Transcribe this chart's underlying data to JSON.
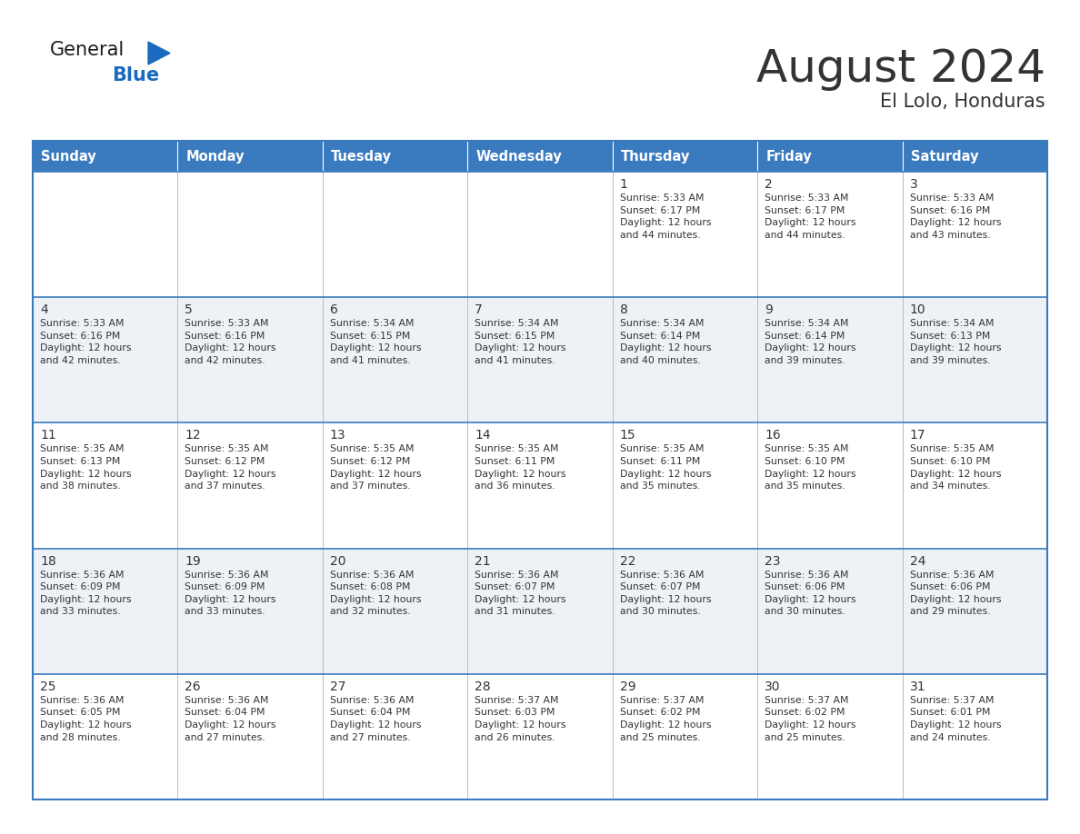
{
  "title": "August 2024",
  "subtitle": "El Lolo, Honduras",
  "header_color": "#3a7abf",
  "header_text_color": "#ffffff",
  "cell_bg_color": "#ffffff",
  "row1_bg": "#ffffff",
  "row2_bg": "#eef2f7",
  "border_color": "#3a7abf",
  "text_color": "#333333",
  "days_of_week": [
    "Sunday",
    "Monday",
    "Tuesday",
    "Wednesday",
    "Thursday",
    "Friday",
    "Saturday"
  ],
  "calendar_data": [
    [
      {
        "day": "",
        "info": ""
      },
      {
        "day": "",
        "info": ""
      },
      {
        "day": "",
        "info": ""
      },
      {
        "day": "",
        "info": ""
      },
      {
        "day": "1",
        "info": "Sunrise: 5:33 AM\nSunset: 6:17 PM\nDaylight: 12 hours\nand 44 minutes."
      },
      {
        "day": "2",
        "info": "Sunrise: 5:33 AM\nSunset: 6:17 PM\nDaylight: 12 hours\nand 44 minutes."
      },
      {
        "day": "3",
        "info": "Sunrise: 5:33 AM\nSunset: 6:16 PM\nDaylight: 12 hours\nand 43 minutes."
      }
    ],
    [
      {
        "day": "4",
        "info": "Sunrise: 5:33 AM\nSunset: 6:16 PM\nDaylight: 12 hours\nand 42 minutes."
      },
      {
        "day": "5",
        "info": "Sunrise: 5:33 AM\nSunset: 6:16 PM\nDaylight: 12 hours\nand 42 minutes."
      },
      {
        "day": "6",
        "info": "Sunrise: 5:34 AM\nSunset: 6:15 PM\nDaylight: 12 hours\nand 41 minutes."
      },
      {
        "day": "7",
        "info": "Sunrise: 5:34 AM\nSunset: 6:15 PM\nDaylight: 12 hours\nand 41 minutes."
      },
      {
        "day": "8",
        "info": "Sunrise: 5:34 AM\nSunset: 6:14 PM\nDaylight: 12 hours\nand 40 minutes."
      },
      {
        "day": "9",
        "info": "Sunrise: 5:34 AM\nSunset: 6:14 PM\nDaylight: 12 hours\nand 39 minutes."
      },
      {
        "day": "10",
        "info": "Sunrise: 5:34 AM\nSunset: 6:13 PM\nDaylight: 12 hours\nand 39 minutes."
      }
    ],
    [
      {
        "day": "11",
        "info": "Sunrise: 5:35 AM\nSunset: 6:13 PM\nDaylight: 12 hours\nand 38 minutes."
      },
      {
        "day": "12",
        "info": "Sunrise: 5:35 AM\nSunset: 6:12 PM\nDaylight: 12 hours\nand 37 minutes."
      },
      {
        "day": "13",
        "info": "Sunrise: 5:35 AM\nSunset: 6:12 PM\nDaylight: 12 hours\nand 37 minutes."
      },
      {
        "day": "14",
        "info": "Sunrise: 5:35 AM\nSunset: 6:11 PM\nDaylight: 12 hours\nand 36 minutes."
      },
      {
        "day": "15",
        "info": "Sunrise: 5:35 AM\nSunset: 6:11 PM\nDaylight: 12 hours\nand 35 minutes."
      },
      {
        "day": "16",
        "info": "Sunrise: 5:35 AM\nSunset: 6:10 PM\nDaylight: 12 hours\nand 35 minutes."
      },
      {
        "day": "17",
        "info": "Sunrise: 5:35 AM\nSunset: 6:10 PM\nDaylight: 12 hours\nand 34 minutes."
      }
    ],
    [
      {
        "day": "18",
        "info": "Sunrise: 5:36 AM\nSunset: 6:09 PM\nDaylight: 12 hours\nand 33 minutes."
      },
      {
        "day": "19",
        "info": "Sunrise: 5:36 AM\nSunset: 6:09 PM\nDaylight: 12 hours\nand 33 minutes."
      },
      {
        "day": "20",
        "info": "Sunrise: 5:36 AM\nSunset: 6:08 PM\nDaylight: 12 hours\nand 32 minutes."
      },
      {
        "day": "21",
        "info": "Sunrise: 5:36 AM\nSunset: 6:07 PM\nDaylight: 12 hours\nand 31 minutes."
      },
      {
        "day": "22",
        "info": "Sunrise: 5:36 AM\nSunset: 6:07 PM\nDaylight: 12 hours\nand 30 minutes."
      },
      {
        "day": "23",
        "info": "Sunrise: 5:36 AM\nSunset: 6:06 PM\nDaylight: 12 hours\nand 30 minutes."
      },
      {
        "day": "24",
        "info": "Sunrise: 5:36 AM\nSunset: 6:06 PM\nDaylight: 12 hours\nand 29 minutes."
      }
    ],
    [
      {
        "day": "25",
        "info": "Sunrise: 5:36 AM\nSunset: 6:05 PM\nDaylight: 12 hours\nand 28 minutes."
      },
      {
        "day": "26",
        "info": "Sunrise: 5:36 AM\nSunset: 6:04 PM\nDaylight: 12 hours\nand 27 minutes."
      },
      {
        "day": "27",
        "info": "Sunrise: 5:36 AM\nSunset: 6:04 PM\nDaylight: 12 hours\nand 27 minutes."
      },
      {
        "day": "28",
        "info": "Sunrise: 5:37 AM\nSunset: 6:03 PM\nDaylight: 12 hours\nand 26 minutes."
      },
      {
        "day": "29",
        "info": "Sunrise: 5:37 AM\nSunset: 6:02 PM\nDaylight: 12 hours\nand 25 minutes."
      },
      {
        "day": "30",
        "info": "Sunrise: 5:37 AM\nSunset: 6:02 PM\nDaylight: 12 hours\nand 25 minutes."
      },
      {
        "day": "31",
        "info": "Sunrise: 5:37 AM\nSunset: 6:01 PM\nDaylight: 12 hours\nand 24 minutes."
      }
    ]
  ],
  "logo_general_color": "#1a1a1a",
  "logo_blue_color": "#1a6abf",
  "logo_triangle_color": "#1a6abf",
  "title_fontsize": 36,
  "subtitle_fontsize": 15,
  "header_fontsize": 10.5,
  "day_num_fontsize": 10,
  "info_fontsize": 7.8
}
